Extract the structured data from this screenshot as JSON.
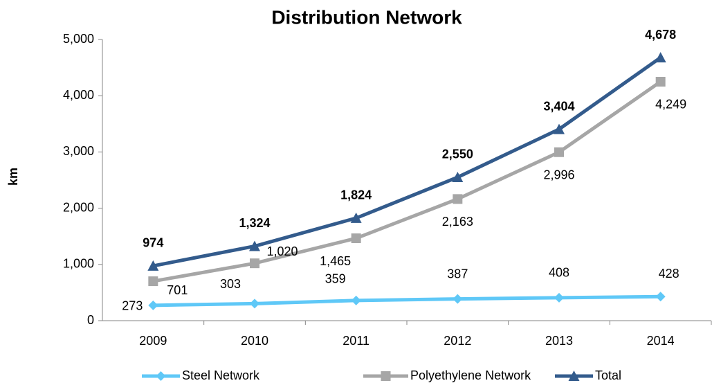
{
  "chart_data": {
    "type": "line",
    "title": "Distribution Network",
    "y_label": "km",
    "categories": [
      "2009",
      "2010",
      "2011",
      "2012",
      "2013",
      "2014"
    ],
    "series": [
      {
        "name": "Steel Network",
        "color": "#5fc8f7",
        "marker": "diamond",
        "values": [
          273,
          303,
          359,
          387,
          408,
          428
        ]
      },
      {
        "name": "Polyethylene Network",
        "color": "#a6a6a6",
        "marker": "square",
        "values": [
          701,
          1020,
          1465,
          2163,
          2996,
          4249
        ],
        "value_labels": [
          "701",
          "1,020",
          "1,465",
          "2,163",
          "2,996",
          "4,249"
        ]
      },
      {
        "name": "Total",
        "color": "#335b8c",
        "marker": "triangle",
        "values": [
          974,
          1324,
          1824,
          2550,
          3404,
          4678
        ],
        "value_labels": [
          "974",
          "1,324",
          "1,824",
          "2,550",
          "3,404",
          "4,678"
        ]
      }
    ],
    "ylim": [
      0,
      5000
    ],
    "yticks": [
      0,
      {
        "value": 1000,
        "label": "1,000"
      },
      {
        "value": 2000,
        "label": "2,000"
      },
      {
        "value": 3000,
        "label": "3,000"
      },
      {
        "value": 4000,
        "label": "4,000"
      },
      {
        "value": 5000,
        "label": "5,000"
      }
    ],
    "grid": false,
    "legend": "bottom"
  }
}
